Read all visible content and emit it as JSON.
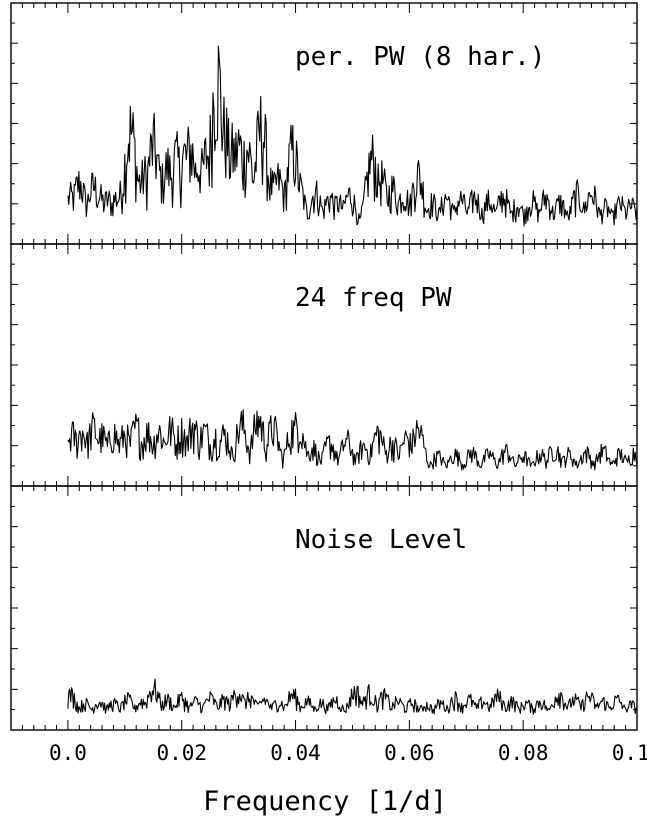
{
  "chart_data": {
    "type": "line",
    "xlabel": "Frequency [1/d]",
    "x_ticks": [
      "0.0",
      "0.02",
      "0.04",
      "0.06",
      "0.08",
      "0.10"
    ],
    "x_tick_values": [
      0.0,
      0.02,
      0.04,
      0.06,
      0.08,
      0.1
    ],
    "xlim": [
      -0.01,
      0.1
    ],
    "grid": false,
    "panels": [
      {
        "label": "per. PW (8 har.)",
        "ylim": [
          0,
          1
        ],
        "peaks": [
          {
            "x": 0.0005,
            "y": 0.22
          },
          {
            "x": 0.002,
            "y": 0.3
          },
          {
            "x": 0.0045,
            "y": 0.28
          },
          {
            "x": 0.0055,
            "y": 0.22
          },
          {
            "x": 0.007,
            "y": 0.2
          },
          {
            "x": 0.0085,
            "y": 0.21
          },
          {
            "x": 0.0095,
            "y": 0.24
          },
          {
            "x": 0.011,
            "y": 0.62
          },
          {
            "x": 0.0125,
            "y": 0.31
          },
          {
            "x": 0.0135,
            "y": 0.35
          },
          {
            "x": 0.015,
            "y": 0.53
          },
          {
            "x": 0.016,
            "y": 0.36
          },
          {
            "x": 0.0175,
            "y": 0.4
          },
          {
            "x": 0.019,
            "y": 0.45
          },
          {
            "x": 0.0205,
            "y": 0.47
          },
          {
            "x": 0.0215,
            "y": 0.51
          },
          {
            "x": 0.023,
            "y": 0.42
          },
          {
            "x": 0.0245,
            "y": 0.48
          },
          {
            "x": 0.0262,
            "y": 0.96
          },
          {
            "x": 0.0275,
            "y": 0.62
          },
          {
            "x": 0.029,
            "y": 0.49
          },
          {
            "x": 0.03,
            "y": 0.53
          },
          {
            "x": 0.0315,
            "y": 0.51
          },
          {
            "x": 0.034,
            "y": 0.64
          },
          {
            "x": 0.0355,
            "y": 0.3
          },
          {
            "x": 0.037,
            "y": 0.32
          },
          {
            "x": 0.0395,
            "y": 0.5
          },
          {
            "x": 0.0405,
            "y": 0.29
          },
          {
            "x": 0.0435,
            "y": 0.24
          },
          {
            "x": 0.046,
            "y": 0.21
          },
          {
            "x": 0.0475,
            "y": 0.18
          },
          {
            "x": 0.0495,
            "y": 0.23
          },
          {
            "x": 0.0535,
            "y": 0.45
          },
          {
            "x": 0.055,
            "y": 0.33
          },
          {
            "x": 0.057,
            "y": 0.27
          },
          {
            "x": 0.059,
            "y": 0.24
          },
          {
            "x": 0.0615,
            "y": 0.35
          },
          {
            "x": 0.064,
            "y": 0.18
          },
          {
            "x": 0.0665,
            "y": 0.21
          },
          {
            "x": 0.069,
            "y": 0.2
          },
          {
            "x": 0.0715,
            "y": 0.21
          },
          {
            "x": 0.074,
            "y": 0.19
          },
          {
            "x": 0.0765,
            "y": 0.22
          },
          {
            "x": 0.079,
            "y": 0.17
          },
          {
            "x": 0.0815,
            "y": 0.19
          },
          {
            "x": 0.084,
            "y": 0.21
          },
          {
            "x": 0.0865,
            "y": 0.18
          },
          {
            "x": 0.0895,
            "y": 0.23
          },
          {
            "x": 0.092,
            "y": 0.24
          },
          {
            "x": 0.0945,
            "y": 0.15
          },
          {
            "x": 0.097,
            "y": 0.17
          },
          {
            "x": 0.099,
            "y": 0.16
          }
        ]
      },
      {
        "label": "24 freq PW",
        "ylim": [
          0,
          1
        ],
        "peaks": [
          {
            "x": 0.0008,
            "y": 0.24
          },
          {
            "x": 0.0025,
            "y": 0.26
          },
          {
            "x": 0.0045,
            "y": 0.28
          },
          {
            "x": 0.006,
            "y": 0.23
          },
          {
            "x": 0.008,
            "y": 0.25
          },
          {
            "x": 0.01,
            "y": 0.24
          },
          {
            "x": 0.012,
            "y": 0.28
          },
          {
            "x": 0.014,
            "y": 0.25
          },
          {
            "x": 0.016,
            "y": 0.26
          },
          {
            "x": 0.018,
            "y": 0.27
          },
          {
            "x": 0.02,
            "y": 0.26
          },
          {
            "x": 0.022,
            "y": 0.29
          },
          {
            "x": 0.024,
            "y": 0.26
          },
          {
            "x": 0.026,
            "y": 0.23
          },
          {
            "x": 0.0275,
            "y": 0.24
          },
          {
            "x": 0.0305,
            "y": 0.3
          },
          {
            "x": 0.0335,
            "y": 0.33
          },
          {
            "x": 0.036,
            "y": 0.28
          },
          {
            "x": 0.0395,
            "y": 0.27
          },
          {
            "x": 0.0405,
            "y": 0.31
          },
          {
            "x": 0.043,
            "y": 0.16
          },
          {
            "x": 0.046,
            "y": 0.19
          },
          {
            "x": 0.049,
            "y": 0.2
          },
          {
            "x": 0.052,
            "y": 0.17
          },
          {
            "x": 0.0545,
            "y": 0.25
          },
          {
            "x": 0.057,
            "y": 0.19
          },
          {
            "x": 0.0595,
            "y": 0.22
          },
          {
            "x": 0.0615,
            "y": 0.27
          },
          {
            "x": 0.065,
            "y": 0.11
          },
          {
            "x": 0.068,
            "y": 0.12
          },
          {
            "x": 0.071,
            "y": 0.13
          },
          {
            "x": 0.074,
            "y": 0.12
          },
          {
            "x": 0.077,
            "y": 0.14
          },
          {
            "x": 0.08,
            "y": 0.11
          },
          {
            "x": 0.083,
            "y": 0.12
          },
          {
            "x": 0.0855,
            "y": 0.16
          },
          {
            "x": 0.088,
            "y": 0.12
          },
          {
            "x": 0.091,
            "y": 0.13
          },
          {
            "x": 0.094,
            "y": 0.14
          },
          {
            "x": 0.097,
            "y": 0.12
          },
          {
            "x": 0.0995,
            "y": 0.13
          }
        ]
      },
      {
        "label": "Noise Level",
        "ylim": [
          0,
          1
        ],
        "peaks": [
          {
            "x": 0.0005,
            "y": 0.14
          },
          {
            "x": 0.003,
            "y": 0.09
          },
          {
            "x": 0.0055,
            "y": 0.1
          },
          {
            "x": 0.008,
            "y": 0.09
          },
          {
            "x": 0.0105,
            "y": 0.11
          },
          {
            "x": 0.013,
            "y": 0.1
          },
          {
            "x": 0.015,
            "y": 0.18
          },
          {
            "x": 0.0175,
            "y": 0.11
          },
          {
            "x": 0.02,
            "y": 0.12
          },
          {
            "x": 0.0225,
            "y": 0.1
          },
          {
            "x": 0.025,
            "y": 0.12
          },
          {
            "x": 0.0275,
            "y": 0.11
          },
          {
            "x": 0.0298,
            "y": 0.16
          },
          {
            "x": 0.032,
            "y": 0.12
          },
          {
            "x": 0.0345,
            "y": 0.11
          },
          {
            "x": 0.037,
            "y": 0.1
          },
          {
            "x": 0.0395,
            "y": 0.14
          },
          {
            "x": 0.042,
            "y": 0.1
          },
          {
            "x": 0.0445,
            "y": 0.09
          },
          {
            "x": 0.047,
            "y": 0.11
          },
          {
            "x": 0.0505,
            "y": 0.16
          },
          {
            "x": 0.053,
            "y": 0.15
          },
          {
            "x": 0.0555,
            "y": 0.13
          },
          {
            "x": 0.058,
            "y": 0.1
          },
          {
            "x": 0.0605,
            "y": 0.09
          },
          {
            "x": 0.063,
            "y": 0.08
          },
          {
            "x": 0.0655,
            "y": 0.09
          },
          {
            "x": 0.068,
            "y": 0.12
          },
          {
            "x": 0.0705,
            "y": 0.11
          },
          {
            "x": 0.073,
            "y": 0.1
          },
          {
            "x": 0.0755,
            "y": 0.13
          },
          {
            "x": 0.078,
            "y": 0.1
          },
          {
            "x": 0.0805,
            "y": 0.09
          },
          {
            "x": 0.083,
            "y": 0.1
          },
          {
            "x": 0.0863,
            "y": 0.15
          },
          {
            "x": 0.089,
            "y": 0.11
          },
          {
            "x": 0.0915,
            "y": 0.13
          },
          {
            "x": 0.094,
            "y": 0.1
          },
          {
            "x": 0.0965,
            "y": 0.11
          },
          {
            "x": 0.099,
            "y": 0.08
          }
        ]
      }
    ]
  }
}
